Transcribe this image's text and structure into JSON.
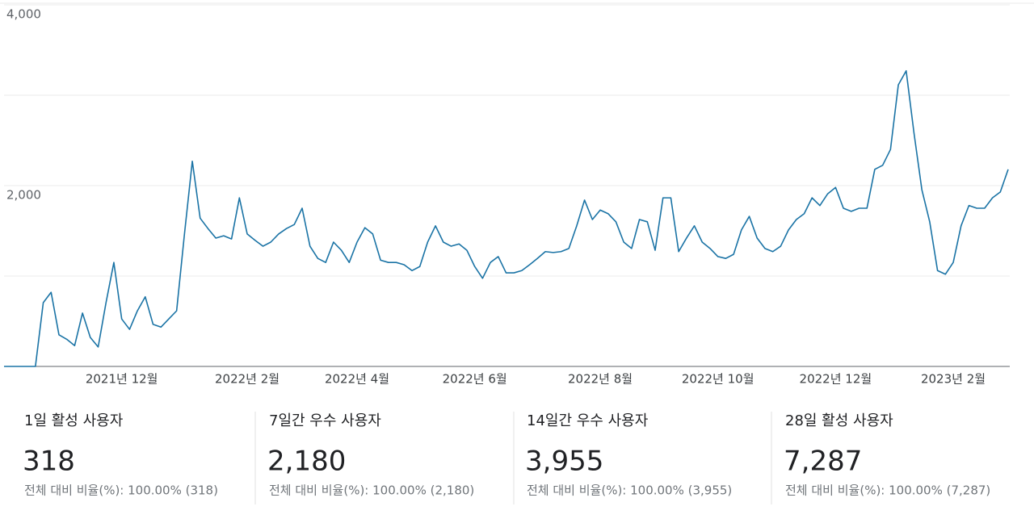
{
  "chart_data": {
    "type": "line",
    "categories": [
      null,
      null,
      null,
      null,
      null,
      null,
      null,
      null,
      null,
      null,
      null,
      null,
      null,
      null,
      null,
      "2021년 12월",
      null,
      null,
      null,
      null,
      null,
      null,
      null,
      null,
      null,
      null,
      null,
      null,
      null,
      null,
      null,
      "2022년 2월",
      null,
      null,
      null,
      null,
      null,
      null,
      null,
      null,
      null,
      null,
      null,
      null,
      null,
      "2022년 4월",
      null,
      null,
      null,
      null,
      null,
      null,
      null,
      null,
      null,
      null,
      null,
      null,
      null,
      null,
      "2022년 6월",
      null,
      null,
      null,
      null,
      null,
      null,
      null,
      null,
      null,
      null,
      null,
      null,
      null,
      null,
      null,
      "2022년 8월",
      null,
      null,
      null,
      null,
      null,
      null,
      null,
      null,
      null,
      null,
      null,
      null,
      null,
      null,
      "2022년 10월",
      null,
      null,
      null,
      null,
      null,
      null,
      null,
      null,
      null,
      null,
      null,
      null,
      null,
      null,
      "2022년 12월",
      null,
      null,
      null,
      null,
      null,
      null,
      null,
      null,
      null,
      null,
      null,
      null,
      null,
      null,
      "2023년 2월",
      null,
      null,
      null,
      null,
      null,
      null,
      null
    ],
    "series": [
      {
        "color": "#1a73a5",
        "values": [
          0,
          0,
          0,
          0,
          0,
          705,
          820,
          350,
          300,
          230,
          590,
          320,
          215,
          705,
          1150,
          525,
          410,
          615,
          770,
          465,
          435,
          525,
          615,
          1465,
          2270,
          1640,
          1525,
          1420,
          1445,
          1410,
          1865,
          1465,
          1395,
          1330,
          1375,
          1465,
          1525,
          1570,
          1750,
          1330,
          1195,
          1150,
          1375,
          1285,
          1150,
          1375,
          1535,
          1465,
          1175,
          1150,
          1150,
          1125,
          1060,
          1105,
          1375,
          1555,
          1375,
          1330,
          1355,
          1285,
          1105,
          975,
          1150,
          1215,
          1035,
          1035,
          1060,
          1125,
          1195,
          1270,
          1260,
          1270,
          1305,
          1555,
          1840,
          1625,
          1730,
          1690,
          1600,
          1375,
          1305,
          1625,
          1600,
          1285,
          1865,
          1865,
          1270,
          1420,
          1555,
          1375,
          1305,
          1215,
          1195,
          1240,
          1510,
          1660,
          1420,
          1305,
          1270,
          1330,
          1510,
          1625,
          1690,
          1865,
          1780,
          1910,
          1980,
          1750,
          1715,
          1750,
          1750,
          2180,
          2225,
          2400,
          3115,
          3270,
          2580,
          1955,
          1600,
          1060,
          1020,
          1150,
          1555,
          1780,
          1750,
          1750,
          1865,
          1930,
          2180
        ]
      }
    ],
    "ylim": [
      0,
      4000
    ],
    "yticks": [
      {
        "value": 2000,
        "label": "2,000"
      },
      {
        "value": 4000,
        "label": "4,000"
      }
    ],
    "minor_yticks": [
      1000,
      3000
    ],
    "grid": true
  },
  "metrics": [
    {
      "label": "1일 활성 사용자",
      "value": "318",
      "ratio": "전체 대비 비율(%): 100.00% (318)"
    },
    {
      "label": "7일간 우수 사용자",
      "value": "2,180",
      "ratio": "전체 대비 비율(%): 100.00% (2,180)"
    },
    {
      "label": "14일간 우수 사용자",
      "value": "3,955",
      "ratio": "전체 대비 비율(%): 100.00% (3,955)"
    },
    {
      "label": "28일 활성 사용자",
      "value": "7,287",
      "ratio": "전체 대비 비율(%): 100.00% (7,287)"
    }
  ]
}
